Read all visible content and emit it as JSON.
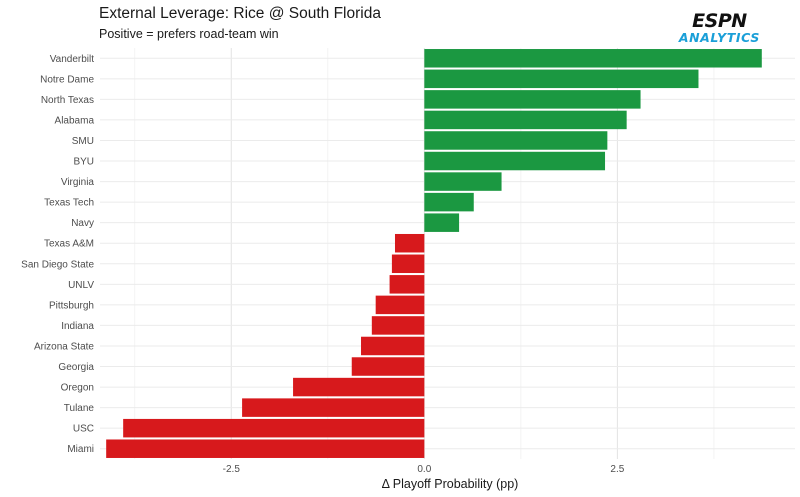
{
  "chart_data": {
    "type": "bar",
    "orientation": "horizontal",
    "title": "External Leverage: Rice @ South Florida",
    "subtitle": "Positive = prefers road-team win",
    "xlabel": "Δ Playoff Probability (pp)",
    "ylabel": "",
    "xlim": [
      -4.2,
      4.8
    ],
    "xticks": [
      -2.5,
      0.0,
      2.5
    ],
    "xtick_labels": [
      "-2.5",
      "0.0",
      "2.5"
    ],
    "grid": true,
    "categories": [
      "Vanderbilt",
      "Notre Dame",
      "North Texas",
      "Alabama",
      "SMU",
      "BYU",
      "Virginia",
      "Texas Tech",
      "Navy",
      "Texas A&M",
      "San Diego State",
      "UNLV",
      "Pittsburgh",
      "Indiana",
      "Arizona State",
      "Georgia",
      "Oregon",
      "Tulane",
      "USC",
      "Miami"
    ],
    "values": [
      4.37,
      3.55,
      2.8,
      2.62,
      2.37,
      2.34,
      1.0,
      0.64,
      0.45,
      -0.38,
      -0.42,
      -0.45,
      -0.63,
      -0.68,
      -0.82,
      -0.94,
      -1.7,
      -2.36,
      -3.9,
      -4.12
    ],
    "positive_color": "#1b9841",
    "negative_color": "#d7191c"
  },
  "logo": {
    "brand": "ESPN",
    "product": "ANALYTICS"
  }
}
